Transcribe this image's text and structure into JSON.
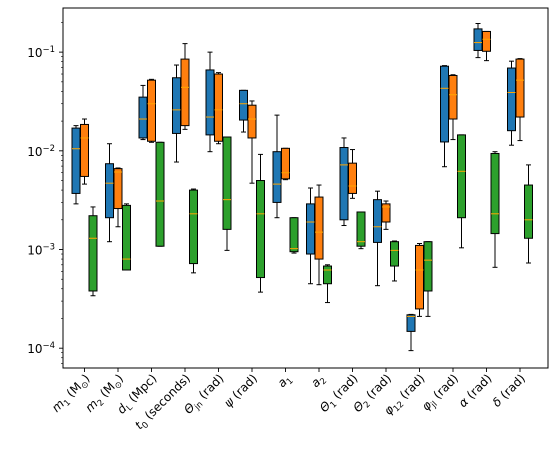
{
  "chart_data": {
    "type": "box",
    "y_scale": "log",
    "ylim": [
      6.3e-05,
      0.28
    ],
    "y_ticks": [
      {
        "value": 0.0001,
        "base": "10",
        "exp": "−4"
      },
      {
        "value": 0.001,
        "base": "10",
        "exp": "−3"
      },
      {
        "value": 0.01,
        "base": "10",
        "exp": "−2"
      },
      {
        "value": 0.1,
        "base": "10",
        "exp": "−1"
      }
    ],
    "categories": [
      {
        "main": "m",
        "sub": "1",
        "tail": " (M",
        "sub2": "⊙",
        "end": ")"
      },
      {
        "main": "m",
        "sub": "2",
        "tail": " (M",
        "sub2": "⊙",
        "end": ")"
      },
      {
        "main": "d",
        "sub": "L",
        "tail": " (Mpc)"
      },
      {
        "main": "t",
        "sub": "0",
        "tail": " (seconds)"
      },
      {
        "main": "Θ",
        "sub": "jn",
        "tail": " (rad)"
      },
      {
        "main": "ψ",
        "tail": " (rad)"
      },
      {
        "main": "a",
        "sub": "1"
      },
      {
        "main": "a",
        "sub": "2"
      },
      {
        "main": "Θ",
        "sub": "1",
        "tail": " (rad)"
      },
      {
        "main": "Θ",
        "sub": "2",
        "tail": " (rad)"
      },
      {
        "main": "φ",
        "sub": "12",
        "tail": " (rad)"
      },
      {
        "main": "φ",
        "sub": "jl",
        "tail": " (rad)"
      },
      {
        "main": "α",
        "tail": " (rad)"
      },
      {
        "main": "δ",
        "tail": " (rad)"
      }
    ],
    "series": [
      {
        "color": "#1f77b4",
        "boxes": [
          {
            "whislo": 0.0029,
            "q1": 0.0037,
            "med": 0.0105,
            "q3": 0.017,
            "whishi": 0.018
          },
          {
            "whislo": 0.0012,
            "q1": 0.0021,
            "med": 0.0047,
            "q3": 0.0074,
            "whishi": 0.0118
          },
          {
            "whislo": 0.013,
            "q1": 0.0135,
            "med": 0.021,
            "q3": 0.035,
            "whishi": 0.046
          },
          {
            "whislo": 0.0077,
            "q1": 0.015,
            "med": 0.026,
            "q3": 0.055,
            "whishi": 0.074
          },
          {
            "whislo": 0.0098,
            "q1": 0.0145,
            "med": 0.022,
            "q3": 0.066,
            "whishi": 0.1
          },
          {
            "whislo": 0.0155,
            "q1": 0.0205,
            "med": 0.03,
            "q3": 0.041,
            "whishi": 0.041
          },
          {
            "whislo": 0.0021,
            "q1": 0.003,
            "med": 0.0046,
            "q3": 0.0098,
            "whishi": 0.023
          },
          {
            "whislo": 0.00045,
            "q1": 0.0009,
            "med": 0.0019,
            "q3": 0.0029,
            "whishi": 0.0042
          },
          {
            "whislo": 0.00175,
            "q1": 0.002,
            "med": 0.0072,
            "q3": 0.0108,
            "whishi": 0.0135
          },
          {
            "whislo": 0.00043,
            "q1": 0.00118,
            "med": 0.0017,
            "q3": 0.0032,
            "whishi": 0.0039
          },
          {
            "whislo": 9.45e-05,
            "q1": 0.000148,
            "med": 0.00021,
            "q3": 0.000218,
            "whishi": 0.00022
          },
          {
            "whislo": 0.0069,
            "q1": 0.0123,
            "med": 0.043,
            "q3": 0.072,
            "whishi": 0.073
          },
          {
            "whislo": 0.088,
            "q1": 0.104,
            "med": 0.125,
            "q3": 0.172,
            "whishi": 0.195
          },
          {
            "whislo": 0.0114,
            "q1": 0.016,
            "med": 0.039,
            "q3": 0.069,
            "whishi": 0.081
          }
        ]
      },
      {
        "color": "#ff7f0e",
        "boxes": [
          {
            "whislo": 0.0046,
            "q1": 0.0055,
            "med": 0.0135,
            "q3": 0.0185,
            "whishi": 0.021
          },
          {
            "whislo": 0.0017,
            "q1": 0.0026,
            "med": 0.0061,
            "q3": 0.0066,
            "whishi": 0.0067
          },
          {
            "whislo": 0.0122,
            "q1": 0.0125,
            "med": 0.03,
            "q3": 0.052,
            "whishi": 0.053
          },
          {
            "whislo": 0.0165,
            "q1": 0.018,
            "med": 0.044,
            "q3": 0.085,
            "whishi": 0.122
          },
          {
            "whislo": 0.0118,
            "q1": 0.0125,
            "med": 0.026,
            "q3": 0.06,
            "whishi": 0.062
          },
          {
            "whislo": 0.0047,
            "q1": 0.0135,
            "med": 0.021,
            "q3": 0.029,
            "whishi": 0.032
          },
          {
            "whislo": 0.0051,
            "q1": 0.0052,
            "med": 0.006,
            "q3": 0.0106,
            "whishi": 0.0106
          },
          {
            "whislo": 0.00044,
            "q1": 0.0008,
            "med": 0.0015,
            "q3": 0.0034,
            "whishi": 0.0045
          },
          {
            "whislo": 0.0033,
            "q1": 0.0037,
            "med": 0.0044,
            "q3": 0.0075,
            "whishi": 0.0103
          },
          {
            "whislo": 0.0016,
            "q1": 0.0019,
            "med": 0.0027,
            "q3": 0.0029,
            "whishi": 0.0031
          },
          {
            "whislo": 0.00021,
            "q1": 0.00025,
            "med": 0.00062,
            "q3": 0.0011,
            "whishi": 0.00115
          },
          {
            "whislo": 0.013,
            "q1": 0.021,
            "med": 0.037,
            "q3": 0.058,
            "whishi": 0.059
          },
          {
            "whislo": 0.082,
            "q1": 0.102,
            "med": 0.135,
            "q3": 0.162,
            "whishi": 0.162
          },
          {
            "whislo": 0.0127,
            "q1": 0.022,
            "med": 0.052,
            "q3": 0.085,
            "whishi": 0.086
          }
        ]
      },
      {
        "color": "#2ca02c",
        "boxes": [
          {
            "whislo": 0.00034,
            "q1": 0.00038,
            "med": 0.0013,
            "q3": 0.0022,
            "whishi": 0.0027
          },
          {
            "whislo": 0.00062,
            "q1": 0.00062,
            "med": 0.0008,
            "q3": 0.0028,
            "whishi": 0.0029
          },
          {
            "whislo": 0.00108,
            "q1": 0.00108,
            "med": 0.0031,
            "q3": 0.0122,
            "whishi": 0.0122
          },
          {
            "whislo": 0.00058,
            "q1": 0.00072,
            "med": 0.0023,
            "q3": 0.004,
            "whishi": 0.0041
          },
          {
            "whislo": 0.00098,
            "q1": 0.0016,
            "med": 0.0032,
            "q3": 0.0138,
            "whishi": 0.0138
          },
          {
            "whislo": 0.00037,
            "q1": 0.00052,
            "med": 0.0023,
            "q3": 0.005,
            "whishi": 0.0092
          },
          {
            "whislo": 0.00092,
            "q1": 0.00095,
            "med": 0.00102,
            "q3": 0.0021,
            "whishi": 0.0021
          },
          {
            "whislo": 0.00029,
            "q1": 0.00045,
            "med": 0.00062,
            "q3": 0.00068,
            "whishi": 0.0007
          },
          {
            "whislo": 0.00102,
            "q1": 0.00108,
            "med": 0.0012,
            "q3": 0.0024,
            "whishi": 0.0024
          },
          {
            "whislo": 0.00048,
            "q1": 0.00068,
            "med": 0.00098,
            "q3": 0.0012,
            "whishi": 0.00122
          },
          {
            "whislo": 0.00021,
            "q1": 0.00038,
            "med": 0.00078,
            "q3": 0.0012,
            "whishi": 0.0012
          },
          {
            "whislo": 0.00104,
            "q1": 0.0021,
            "med": 0.0062,
            "q3": 0.0145,
            "whishi": 0.0145
          },
          {
            "whislo": 0.00066,
            "q1": 0.00145,
            "med": 0.0023,
            "q3": 0.0094,
            "whishi": 0.0098
          },
          {
            "whislo": 0.00073,
            "q1": 0.0013,
            "med": 0.002,
            "q3": 0.0045,
            "whishi": 0.0072
          }
        ]
      }
    ],
    "median_color": "#ffa500",
    "grid": false,
    "legend": "none"
  }
}
